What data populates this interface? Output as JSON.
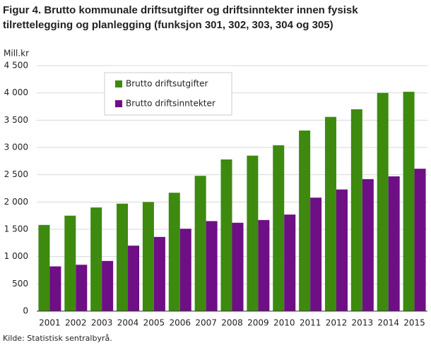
{
  "chart_data": {
    "type": "bar",
    "title": "Figur 4. Brutto kommunale driftsutgifter og driftsinntekter innen fysisk tilrettelegging og planlegging (funksjon 301, 302, 303, 304 og 305)",
    "y_label": "Mill.kr",
    "source": "Kilde: Statistisk sentralbyrå.",
    "categories": [
      "2001",
      "2002",
      "2003",
      "2004",
      "2005",
      "2006",
      "2007",
      "2008",
      "2009",
      "2010",
      "2011",
      "2012",
      "2013",
      "2014",
      "2015"
    ],
    "series": [
      {
        "name": "Brutto driftsutgifter",
        "color": "#3d8a0f",
        "values": [
          1580,
          1750,
          1900,
          1970,
          2000,
          2170,
          2480,
          2780,
          2850,
          3040,
          3310,
          3560,
          3700,
          4000,
          4020
        ]
      },
      {
        "name": "Brutto driftsinntekter",
        "color": "#6e0f85",
        "values": [
          820,
          850,
          920,
          1200,
          1360,
          1510,
          1650,
          1620,
          1670,
          1770,
          2080,
          2230,
          2420,
          2470,
          2610
        ]
      }
    ],
    "ylim": [
      0,
      4500
    ],
    "yticks": [
      0,
      500,
      {
        "value": 1000,
        "label": "1 000"
      },
      {
        "value": 1500,
        "label": "1 500"
      },
      {
        "value": 2000,
        "label": "2 000"
      },
      {
        "value": 2500,
        "label": "2 500"
      },
      {
        "value": 3000,
        "label": "3 000"
      },
      {
        "value": 3500,
        "label": "3 500"
      },
      {
        "value": 4000,
        "label": "4 000"
      },
      {
        "value": 4500,
        "label": "4 500"
      }
    ],
    "grid": true,
    "legend": "top-left"
  }
}
